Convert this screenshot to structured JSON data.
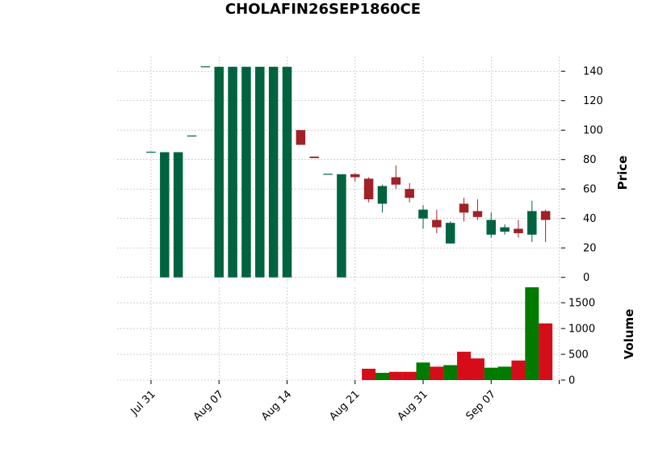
{
  "chart_data": {
    "type": "candlestick",
    "title": "CHOLAFIN26SEP1860CE",
    "price_panel": {
      "ylabel": "Price",
      "ylim": [
        -4,
        150
      ],
      "yticks": [
        0,
        20,
        40,
        60,
        80,
        100,
        120,
        140
      ],
      "grid": true,
      "axis_side": "right"
    },
    "volume_panel": {
      "ylabel": "Volume",
      "ylim": [
        0,
        1800
      ],
      "yticks": [
        0,
        500,
        1000,
        1500
      ],
      "grid": true,
      "axis_side": "right"
    },
    "xaxis": {
      "tick_labels": [
        {
          "label": "Jul 31",
          "index": 0
        },
        {
          "label": "Aug 07",
          "index": 5
        },
        {
          "label": "Aug 14",
          "index": 10
        },
        {
          "label": "Aug 21",
          "index": 15
        },
        {
          "label": "Aug 31",
          "index": 20
        },
        {
          "label": "Sep 07",
          "index": 25
        },
        {
          "label": "",
          "index": 30
        }
      ]
    },
    "colors": {
      "up_candle": "#006340",
      "down_candle": "#a02128",
      "up_volume": "#007a00",
      "down_volume": "#d50d18"
    },
    "candles": [
      {
        "o": 85,
        "h": 85,
        "l": 85,
        "c": 85,
        "v": 0
      },
      {
        "o": 0,
        "h": 85,
        "l": 0,
        "c": 85,
        "v": 0
      },
      {
        "o": 0,
        "h": 85,
        "l": 0,
        "c": 85,
        "v": 0
      },
      {
        "o": 96,
        "h": 96,
        "l": 96,
        "c": 96,
        "v": 0
      },
      {
        "o": 143,
        "h": 143,
        "l": 143,
        "c": 143,
        "v": 0
      },
      {
        "o": 0,
        "h": 143,
        "l": 0,
        "c": 143,
        "v": 0
      },
      {
        "o": 0,
        "h": 143,
        "l": 0,
        "c": 143,
        "v": 0
      },
      {
        "o": 0,
        "h": 143,
        "l": 0,
        "c": 143,
        "v": 0
      },
      {
        "o": 0,
        "h": 143,
        "l": 0,
        "c": 143,
        "v": 0
      },
      {
        "o": 0,
        "h": 143,
        "l": 0,
        "c": 143,
        "v": 0
      },
      {
        "o": 0,
        "h": 143,
        "l": 0,
        "c": 143,
        "v": 0
      },
      {
        "o": 100,
        "h": 100,
        "l": 90,
        "c": 90,
        "v": 0
      },
      {
        "o": 82,
        "h": 82,
        "l": 81,
        "c": 81,
        "v": 0
      },
      {
        "o": 70,
        "h": 70,
        "l": 70,
        "c": 70,
        "v": 0
      },
      {
        "o": 0,
        "h": 70,
        "l": 0,
        "c": 70,
        "v": 0
      },
      {
        "o": 70,
        "h": 71,
        "l": 65,
        "c": 68,
        "v": 0
      },
      {
        "o": 67,
        "h": 68,
        "l": 51,
        "c": 53,
        "v": 220
      },
      {
        "o": 50,
        "h": 63,
        "l": 44,
        "c": 62,
        "v": 140
      },
      {
        "o": 68,
        "h": 76,
        "l": 60,
        "c": 63,
        "v": 160
      },
      {
        "o": 60,
        "h": 64,
        "l": 51,
        "c": 54,
        "v": 160
      },
      {
        "o": 40,
        "h": 49,
        "l": 33,
        "c": 46,
        "v": 340
      },
      {
        "o": 39,
        "h": 46,
        "l": 30,
        "c": 34,
        "v": 260
      },
      {
        "o": 23,
        "h": 38,
        "l": 23,
        "c": 37,
        "v": 290
      },
      {
        "o": 50,
        "h": 54,
        "l": 38,
        "c": 44,
        "v": 550
      },
      {
        "o": 45,
        "h": 53,
        "l": 39,
        "c": 41,
        "v": 420
      },
      {
        "o": 29,
        "h": 44,
        "l": 27,
        "c": 39,
        "v": 240
      },
      {
        "o": 31,
        "h": 36,
        "l": 29,
        "c": 34,
        "v": 260
      },
      {
        "o": 33,
        "h": 39,
        "l": 27,
        "c": 30,
        "v": 380
      },
      {
        "o": 29,
        "h": 52,
        "l": 24,
        "c": 45,
        "v": 1800
      },
      {
        "o": 45,
        "h": 46,
        "l": 24,
        "c": 39,
        "v": 1100
      }
    ]
  }
}
